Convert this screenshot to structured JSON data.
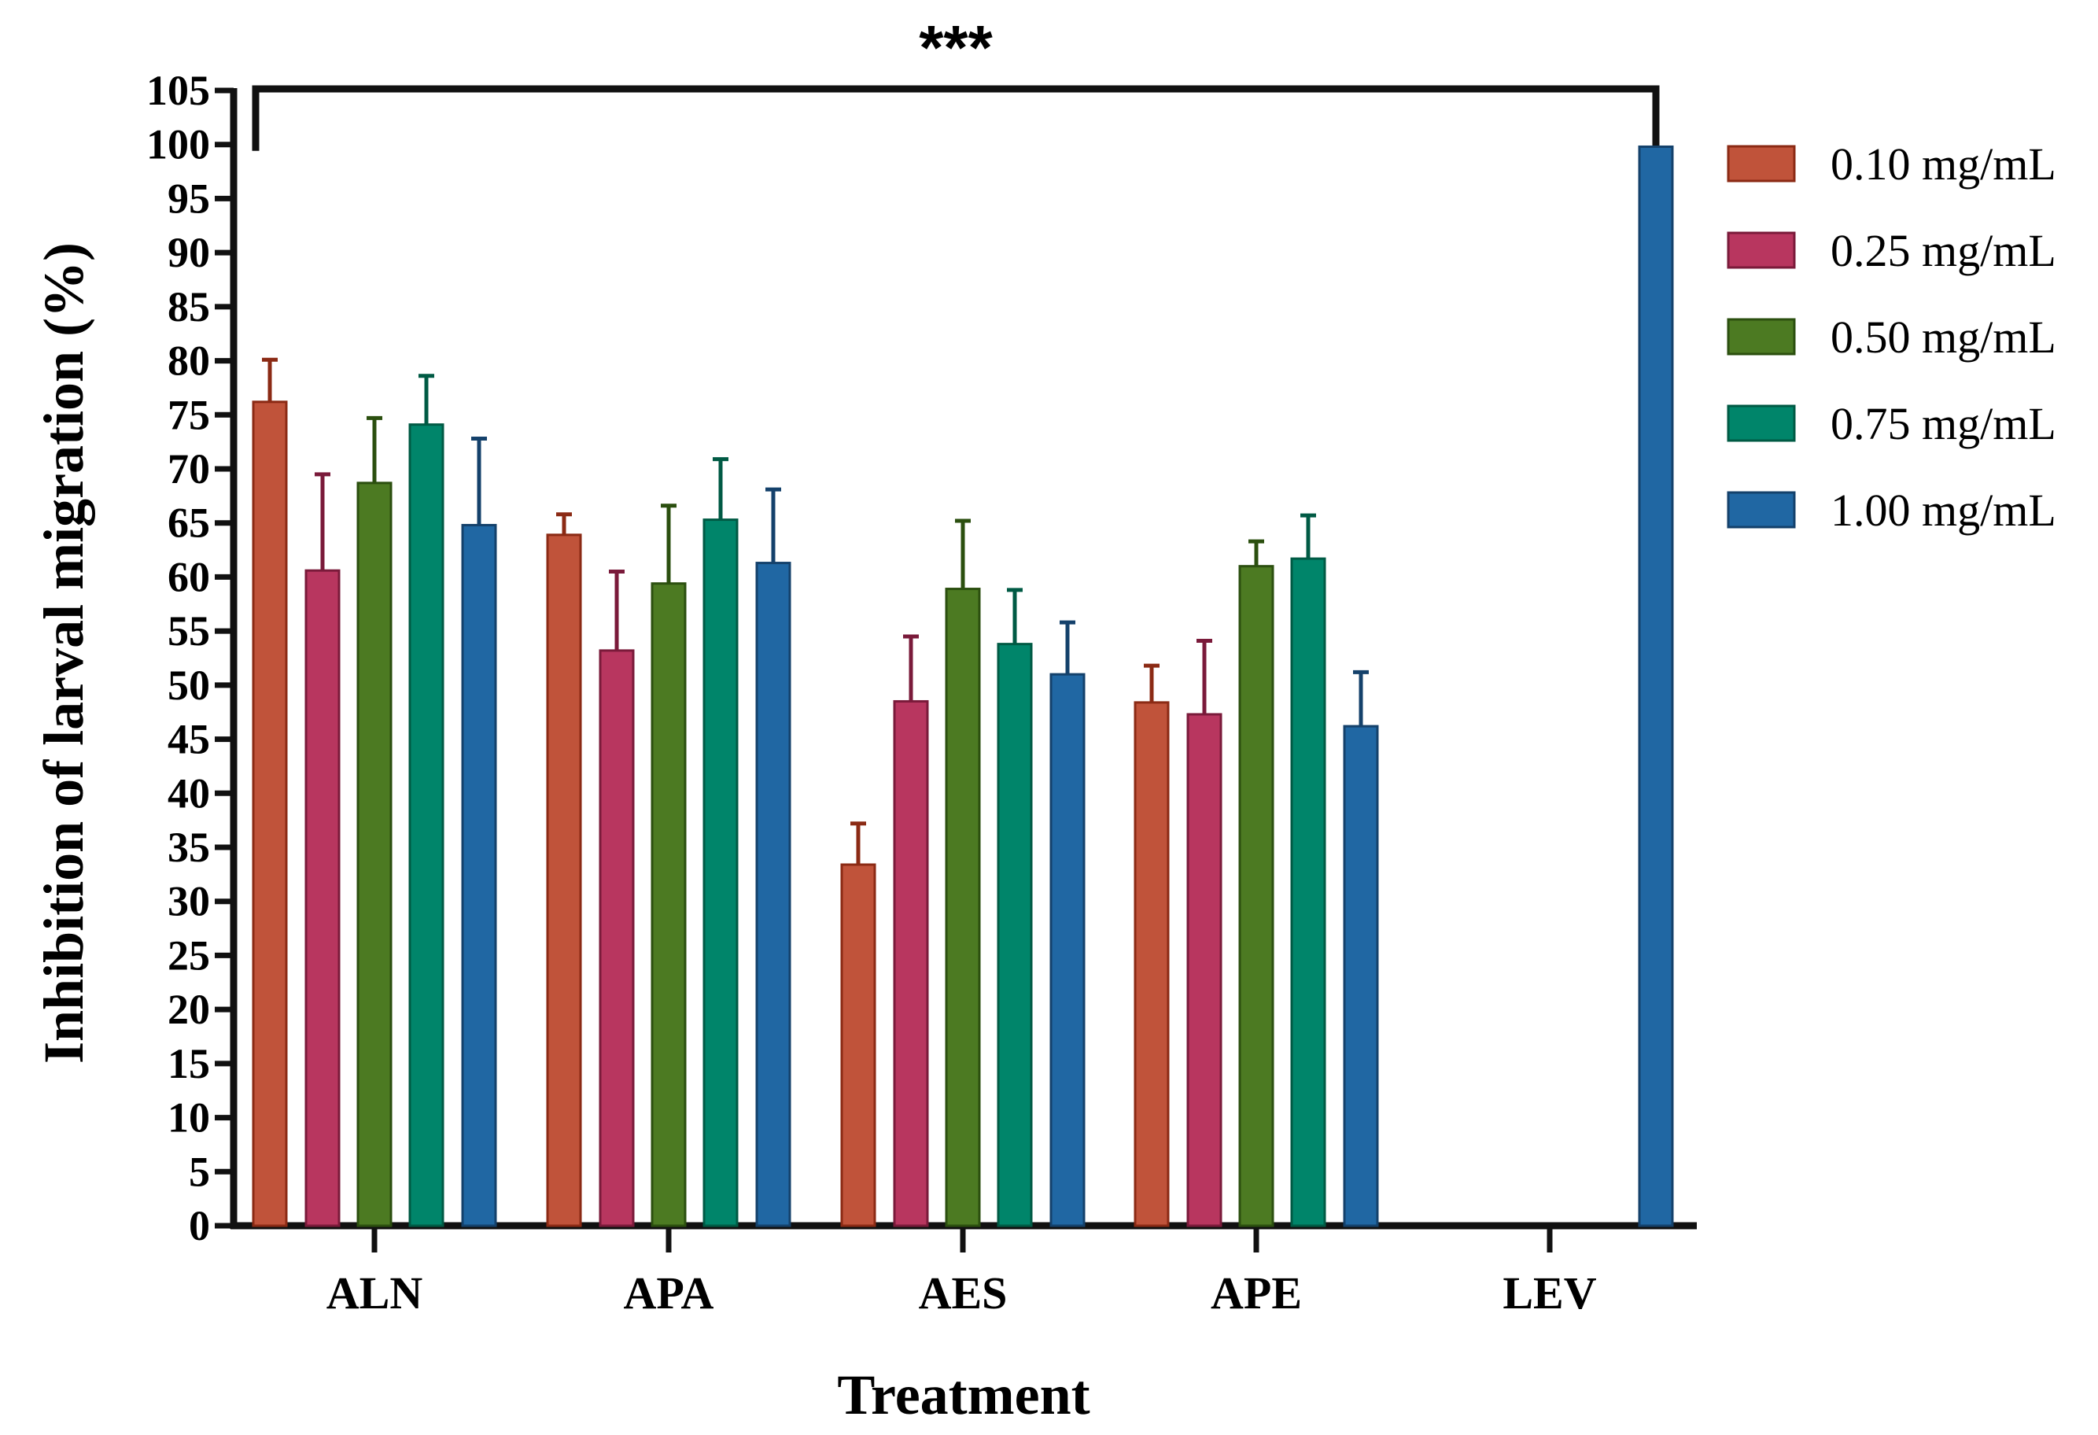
{
  "chart_data": {
    "type": "bar",
    "title": "",
    "xlabel": "Treatment",
    "ylabel": "Inhibition of larval migration (%)",
    "ylim": [
      0,
      105
    ],
    "ytick_step": 5,
    "categories": [
      "ALN",
      "APA",
      "AES",
      "APE",
      "LEV"
    ],
    "series": [
      {
        "name": "0.10 mg/mL",
        "color": "#C0533A",
        "edge": "#8B2A14",
        "values": [
          76.2,
          63.9,
          33.4,
          48.4,
          null
        ],
        "errors": [
          3.9,
          1.9,
          3.8,
          3.4,
          null
        ]
      },
      {
        "name": "0.25 mg/mL",
        "color": "#B8365F",
        "edge": "#7A1A3A",
        "values": [
          60.6,
          53.2,
          48.5,
          47.3,
          null
        ],
        "errors": [
          8.9,
          7.3,
          6.0,
          6.8,
          null
        ]
      },
      {
        "name": "0.50 mg/mL",
        "color": "#4C7A22",
        "edge": "#2B4F0F",
        "values": [
          68.7,
          59.4,
          58.9,
          61.0,
          null
        ],
        "errors": [
          6.0,
          7.2,
          6.3,
          2.3,
          null
        ]
      },
      {
        "name": "0.75 mg/mL",
        "color": "#00856A",
        "edge": "#005A44",
        "values": [
          74.1,
          65.3,
          53.8,
          61.7,
          null
        ],
        "errors": [
          4.5,
          5.6,
          5.0,
          4.0,
          null
        ]
      },
      {
        "name": "1.00 mg/mL",
        "color": "#2067A3",
        "edge": "#14416B",
        "values": [
          64.8,
          61.3,
          51.0,
          46.2,
          99.8
        ],
        "errors": [
          8.0,
          6.8,
          4.8,
          5.0,
          null
        ]
      }
    ],
    "legend_position": "right",
    "significance": {
      "label": "***",
      "from": "ALN",
      "to": "LEV"
    }
  }
}
